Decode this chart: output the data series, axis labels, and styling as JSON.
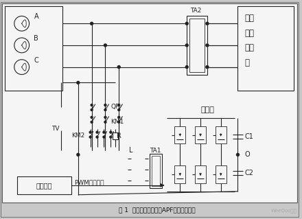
{
  "title": "图 1  三相四线制并联型APF的系统结构图",
  "watermark": "WeeQoo维库",
  "bg_outer": "#c8c8c8",
  "bg_inner": "#f5f5f5",
  "line_color": "#222222",
  "label_A": "A",
  "label_B": "B",
  "label_C": "C",
  "label_TA2": "TA2",
  "label_nonlinear_lines": [
    "非线",
    "性综",
    "合负",
    "载"
  ],
  "label_QF": "QF",
  "label_TV": "TV",
  "label_KM1": "KM1",
  "label_KM2": "KM2",
  "label_R": "R",
  "label_L": "L",
  "label_TA1": "TA1",
  "label_main_circuit": "主电路",
  "label_C1": "C1",
  "label_C2": "C2",
  "label_O": "O",
  "label_control": "控制系统",
  "label_PWM": "PWM驱动信号",
  "fig_width": 4.4,
  "fig_height": 3.19,
  "dpi": 100
}
